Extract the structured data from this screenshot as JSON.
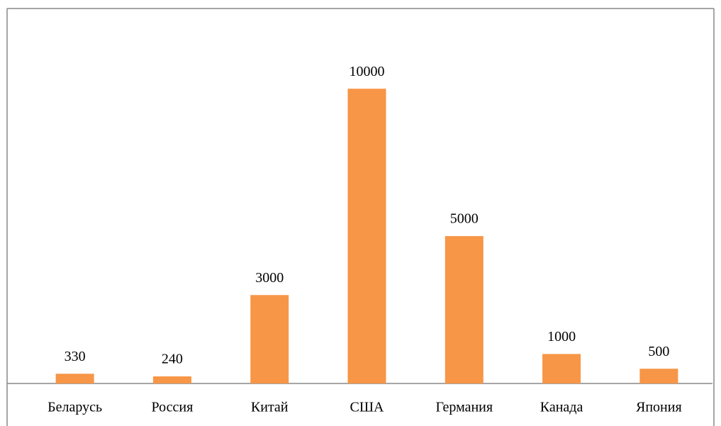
{
  "chart_data": {
    "type": "bar",
    "categories": [
      "Беларусь",
      "Россия",
      "Китай",
      "США",
      "Германия",
      "Канада",
      "Япония"
    ],
    "values": [
      330,
      240,
      3000,
      10000,
      5000,
      1000,
      500
    ],
    "color": "#f79646",
    "ylim": [
      0,
      12000
    ]
  }
}
